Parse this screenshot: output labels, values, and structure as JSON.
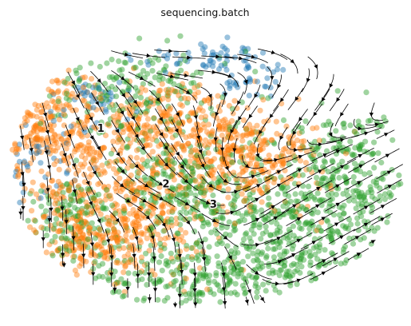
{
  "chart_data": {
    "type": "scatter",
    "title": "sequencing.batch",
    "xlabel": "",
    "ylabel": "",
    "axes_visible": false,
    "grid": false,
    "legend": "none",
    "overlay": "velocity streamlines (black, with arrowheads)",
    "embedding": "2D embedding, axis-free; points shown in normalized coordinates (x left→right 0–1, y bottom→top 0–1)",
    "colors": {
      "batch_blue": "#1f77b4",
      "batch_orange": "#ff7f0e",
      "batch_green": "#2ca02c",
      "stream": "#000000"
    },
    "series": [
      {
        "color": "#1f77b4",
        "regions": [
          {
            "x": 0.5,
            "y": 0.88,
            "sx": 0.09,
            "sy": 0.03,
            "share": 0.3
          },
          {
            "x": 0.23,
            "y": 0.73,
            "sx": 0.06,
            "sy": 0.05,
            "share": 0.25
          },
          {
            "x": 0.09,
            "y": 0.52,
            "sx": 0.05,
            "sy": 0.09,
            "share": 0.25
          },
          {
            "x": 0.61,
            "y": 0.81,
            "sx": 0.05,
            "sy": 0.03,
            "share": 0.2
          }
        ],
        "approx_points": 180
      },
      {
        "color": "#ff7f0e",
        "regions": [
          {
            "x": 0.1,
            "y": 0.66,
            "sx": 0.06,
            "sy": 0.12,
            "share": 0.2
          },
          {
            "x": 0.3,
            "y": 0.38,
            "sx": 0.11,
            "sy": 0.12,
            "share": 0.3
          },
          {
            "x": 0.6,
            "y": 0.55,
            "sx": 0.09,
            "sy": 0.09,
            "share": 0.22
          },
          {
            "x": 0.39,
            "y": 0.66,
            "sx": 0.1,
            "sy": 0.08,
            "share": 0.18
          },
          {
            "x": 0.2,
            "y": 0.26,
            "sx": 0.07,
            "sy": 0.06,
            "share": 0.1
          }
        ],
        "approx_points": 1500
      },
      {
        "color": "#2ca02c",
        "regions": [
          {
            "x": 0.45,
            "y": 0.45,
            "sx": 0.1,
            "sy": 0.12,
            "share": 0.2
          },
          {
            "x": 0.72,
            "y": 0.28,
            "sx": 0.14,
            "sy": 0.12,
            "share": 0.3
          },
          {
            "x": 0.85,
            "y": 0.5,
            "sx": 0.08,
            "sy": 0.1,
            "share": 0.15
          },
          {
            "x": 0.44,
            "y": 0.14,
            "sx": 0.13,
            "sy": 0.06,
            "share": 0.15
          },
          {
            "x": 0.32,
            "y": 0.78,
            "sx": 0.12,
            "sy": 0.08,
            "share": 0.12
          },
          {
            "x": 0.16,
            "y": 0.33,
            "sx": 0.05,
            "sy": 0.07,
            "share": 0.08
          }
        ],
        "approx_points": 1500
      }
    ],
    "annotations": [
      {
        "text": "1",
        "x": 0.235,
        "y": 0.63
      },
      {
        "text": "2",
        "x": 0.4,
        "y": 0.44
      },
      {
        "text": "3",
        "x": 0.52,
        "y": 0.37
      }
    ]
  }
}
